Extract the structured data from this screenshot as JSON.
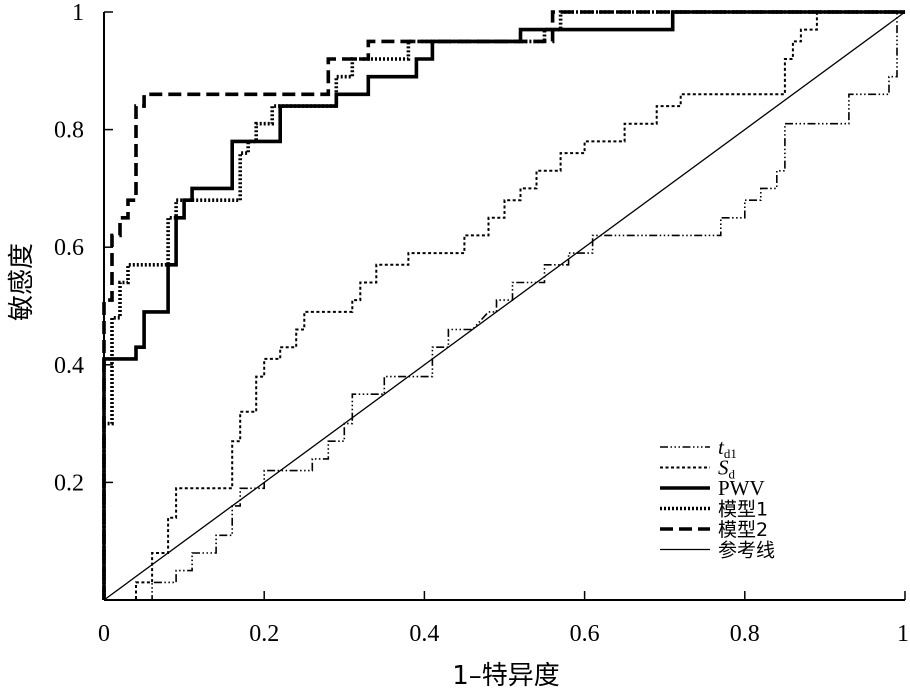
{
  "chart_data": {
    "type": "line",
    "title": "",
    "xlabel": "1–特异度",
    "ylabel": "敏感度",
    "xlim": [
      0,
      1
    ],
    "ylim": [
      0,
      1
    ],
    "x_ticks": [
      {
        "value": 0,
        "label": "0"
      },
      {
        "value": 0.2,
        "label": "0.2"
      },
      {
        "value": 0.4,
        "label": "0.4"
      },
      {
        "value": 0.6,
        "label": "0.6"
      },
      {
        "value": 0.8,
        "label": "0.8"
      },
      {
        "value": 1,
        "label": "1"
      }
    ],
    "y_ticks": [
      {
        "value": 0.2,
        "label": "0.2"
      },
      {
        "value": 0.4,
        "label": "0.4"
      },
      {
        "value": 0.6,
        "label": "0.6"
      },
      {
        "value": 0.8,
        "label": "0.8"
      },
      {
        "value": 1,
        "label": "1"
      }
    ],
    "grid": false,
    "legend_position": "bottom-right",
    "series": [
      {
        "name": "t",
        "name_sub": "d1",
        "italic": true,
        "style": "dash-dot-dot-dot",
        "color": "#000000",
        "points": [
          [
            0,
            0
          ],
          [
            0.03,
            0
          ],
          [
            0.06,
            0
          ],
          [
            0.06,
            0.03
          ],
          [
            0.09,
            0.03
          ],
          [
            0.09,
            0.05
          ],
          [
            0.11,
            0.05
          ],
          [
            0.11,
            0.08
          ],
          [
            0.14,
            0.08
          ],
          [
            0.14,
            0.11
          ],
          [
            0.16,
            0.11
          ],
          [
            0.16,
            0.16
          ],
          [
            0.17,
            0.16
          ],
          [
            0.17,
            0.19
          ],
          [
            0.2,
            0.19
          ],
          [
            0.2,
            0.22
          ],
          [
            0.26,
            0.22
          ],
          [
            0.26,
            0.24
          ],
          [
            0.28,
            0.24
          ],
          [
            0.28,
            0.27
          ],
          [
            0.3,
            0.27
          ],
          [
            0.3,
            0.3
          ],
          [
            0.31,
            0.3
          ],
          [
            0.31,
            0.35
          ],
          [
            0.35,
            0.35
          ],
          [
            0.35,
            0.38
          ],
          [
            0.41,
            0.38
          ],
          [
            0.41,
            0.43
          ],
          [
            0.43,
            0.43
          ],
          [
            0.43,
            0.46
          ],
          [
            0.46,
            0.46
          ],
          [
            0.48,
            0.49
          ],
          [
            0.49,
            0.49
          ],
          [
            0.49,
            0.51
          ],
          [
            0.51,
            0.51
          ],
          [
            0.51,
            0.54
          ],
          [
            0.55,
            0.54
          ],
          [
            0.55,
            0.57
          ],
          [
            0.58,
            0.57
          ],
          [
            0.58,
            0.59
          ],
          [
            0.61,
            0.59
          ],
          [
            0.61,
            0.62
          ],
          [
            0.77,
            0.62
          ],
          [
            0.77,
            0.65
          ],
          [
            0.8,
            0.65
          ],
          [
            0.8,
            0.68
          ],
          [
            0.82,
            0.68
          ],
          [
            0.82,
            0.7
          ],
          [
            0.84,
            0.7
          ],
          [
            0.84,
            0.73
          ],
          [
            0.85,
            0.73
          ],
          [
            0.85,
            0.81
          ],
          [
            0.93,
            0.81
          ],
          [
            0.93,
            0.86
          ],
          [
            0.98,
            0.86
          ],
          [
            0.98,
            0.89
          ],
          [
            0.99,
            0.89
          ],
          [
            0.99,
            1
          ],
          [
            1,
            1
          ]
        ]
      },
      {
        "name": "S",
        "name_sub": "d",
        "italic": true,
        "style": "dashed-fine",
        "color": "#000000",
        "points": [
          [
            0,
            0
          ],
          [
            0.04,
            0
          ],
          [
            0.04,
            0.03
          ],
          [
            0.06,
            0.03
          ],
          [
            0.06,
            0.08
          ],
          [
            0.08,
            0.08
          ],
          [
            0.08,
            0.14
          ],
          [
            0.09,
            0.14
          ],
          [
            0.09,
            0.19
          ],
          [
            0.13,
            0.19
          ],
          [
            0.13,
            0.19
          ],
          [
            0.16,
            0.19
          ],
          [
            0.16,
            0.27
          ],
          [
            0.17,
            0.27
          ],
          [
            0.17,
            0.32
          ],
          [
            0.19,
            0.32
          ],
          [
            0.19,
            0.38
          ],
          [
            0.2,
            0.38
          ],
          [
            0.2,
            0.41
          ],
          [
            0.22,
            0.41
          ],
          [
            0.22,
            0.43
          ],
          [
            0.24,
            0.43
          ],
          [
            0.24,
            0.46
          ],
          [
            0.25,
            0.46
          ],
          [
            0.25,
            0.49
          ],
          [
            0.31,
            0.49
          ],
          [
            0.31,
            0.51
          ],
          [
            0.32,
            0.51
          ],
          [
            0.32,
            0.54
          ],
          [
            0.34,
            0.54
          ],
          [
            0.34,
            0.57
          ],
          [
            0.38,
            0.57
          ],
          [
            0.38,
            0.59
          ],
          [
            0.45,
            0.59
          ],
          [
            0.45,
            0.62
          ],
          [
            0.48,
            0.62
          ],
          [
            0.48,
            0.65
          ],
          [
            0.5,
            0.65
          ],
          [
            0.5,
            0.68
          ],
          [
            0.52,
            0.68
          ],
          [
            0.52,
            0.7
          ],
          [
            0.54,
            0.7
          ],
          [
            0.54,
            0.73
          ],
          [
            0.57,
            0.73
          ],
          [
            0.57,
            0.76
          ],
          [
            0.6,
            0.76
          ],
          [
            0.6,
            0.78
          ],
          [
            0.65,
            0.78
          ],
          [
            0.65,
            0.81
          ],
          [
            0.69,
            0.81
          ],
          [
            0.69,
            0.84
          ],
          [
            0.72,
            0.84
          ],
          [
            0.72,
            0.86
          ],
          [
            0.85,
            0.86
          ],
          [
            0.85,
            0.92
          ],
          [
            0.86,
            0.92
          ],
          [
            0.86,
            0.95
          ],
          [
            0.87,
            0.95
          ],
          [
            0.87,
            0.97
          ],
          [
            0.89,
            0.97
          ],
          [
            0.89,
            1
          ],
          [
            1,
            1
          ]
        ]
      },
      {
        "name": "PWV",
        "italic": false,
        "style": "solid-thick",
        "color": "#000000",
        "points": [
          [
            0,
            0
          ],
          [
            0,
            0.41
          ],
          [
            0.04,
            0.41
          ],
          [
            0.04,
            0.43
          ],
          [
            0.05,
            0.43
          ],
          [
            0.05,
            0.49
          ],
          [
            0.08,
            0.49
          ],
          [
            0.08,
            0.57
          ],
          [
            0.09,
            0.57
          ],
          [
            0.09,
            0.65
          ],
          [
            0.1,
            0.65
          ],
          [
            0.1,
            0.68
          ],
          [
            0.11,
            0.68
          ],
          [
            0.11,
            0.7
          ],
          [
            0.16,
            0.7
          ],
          [
            0.16,
            0.78
          ],
          [
            0.2,
            0.78
          ],
          [
            0.2,
            0.78
          ],
          [
            0.22,
            0.78
          ],
          [
            0.22,
            0.84
          ],
          [
            0.29,
            0.84
          ],
          [
            0.29,
            0.86
          ],
          [
            0.3,
            0.86
          ],
          [
            0.3,
            0.86
          ],
          [
            0.33,
            0.86
          ],
          [
            0.33,
            0.89
          ],
          [
            0.36,
            0.89
          ],
          [
            0.36,
            0.89
          ],
          [
            0.39,
            0.89
          ],
          [
            0.39,
            0.92
          ],
          [
            0.41,
            0.92
          ],
          [
            0.41,
            0.95
          ],
          [
            0.52,
            0.95
          ],
          [
            0.52,
            0.97
          ],
          [
            0.57,
            0.97
          ],
          [
            0.57,
            0.97
          ],
          [
            0.71,
            0.97
          ],
          [
            0.71,
            1
          ],
          [
            1,
            1
          ]
        ]
      },
      {
        "name": "模型1",
        "italic": false,
        "style": "dotted-thick",
        "color": "#000000",
        "points": [
          [
            0,
            0
          ],
          [
            0,
            0.3
          ],
          [
            0.01,
            0.3
          ],
          [
            0.01,
            0.48
          ],
          [
            0.02,
            0.48
          ],
          [
            0.02,
            0.54
          ],
          [
            0.03,
            0.54
          ],
          [
            0.03,
            0.57
          ],
          [
            0.08,
            0.57
          ],
          [
            0.08,
            0.65
          ],
          [
            0.09,
            0.65
          ],
          [
            0.09,
            0.68
          ],
          [
            0.14,
            0.68
          ],
          [
            0.14,
            0.68
          ],
          [
            0.17,
            0.68
          ],
          [
            0.17,
            0.76
          ],
          [
            0.18,
            0.76
          ],
          [
            0.18,
            0.78
          ],
          [
            0.19,
            0.78
          ],
          [
            0.19,
            0.81
          ],
          [
            0.21,
            0.81
          ],
          [
            0.21,
            0.84
          ],
          [
            0.29,
            0.84
          ],
          [
            0.29,
            0.89
          ],
          [
            0.31,
            0.89
          ],
          [
            0.31,
            0.92
          ],
          [
            0.38,
            0.92
          ],
          [
            0.38,
            0.95
          ],
          [
            0.51,
            0.95
          ],
          [
            0.51,
            0.95
          ],
          [
            0.55,
            0.95
          ],
          [
            0.55,
            0.97
          ],
          [
            0.57,
            0.97
          ],
          [
            0.57,
            1
          ],
          [
            1,
            1
          ]
        ]
      },
      {
        "name": "模型2",
        "italic": false,
        "style": "dashed-thick",
        "color": "#000000",
        "points": [
          [
            0,
            0
          ],
          [
            0,
            0.51
          ],
          [
            0.01,
            0.51
          ],
          [
            0.01,
            0.62
          ],
          [
            0.02,
            0.62
          ],
          [
            0.02,
            0.65
          ],
          [
            0.03,
            0.65
          ],
          [
            0.03,
            0.68
          ],
          [
            0.04,
            0.68
          ],
          [
            0.04,
            0.84
          ],
          [
            0.05,
            0.84
          ],
          [
            0.05,
            0.86
          ],
          [
            0.07,
            0.86
          ],
          [
            0.07,
            0.86
          ],
          [
            0.28,
            0.86
          ],
          [
            0.28,
            0.92
          ],
          [
            0.3,
            0.92
          ],
          [
            0.3,
            0.92
          ],
          [
            0.33,
            0.92
          ],
          [
            0.33,
            0.95
          ],
          [
            0.56,
            0.95
          ],
          [
            0.56,
            1
          ],
          [
            1,
            1
          ]
        ]
      },
      {
        "name": "参考线",
        "italic": false,
        "style": "solid-thin",
        "color": "#000000",
        "points": [
          [
            0,
            0
          ],
          [
            1,
            1
          ]
        ]
      }
    ]
  }
}
